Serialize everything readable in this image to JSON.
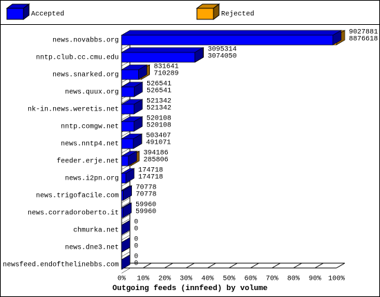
{
  "chart_data": {
    "type": "bar",
    "orientation": "horizontal",
    "layout": "overlaid",
    "title": "Outgoing feeds (innfeed) by volume",
    "categories": [
      "news.novabbs.org",
      "nntp.club.cc.cmu.edu",
      "news.snarked.org",
      "news.quux.org",
      "nk-in.news.weretis.net",
      "nntp.comgw.net",
      "news.nntp4.net",
      "feeder.erje.net",
      "news.i2pn.org",
      "news.trigofacile.com",
      "news.corradoroberto.it",
      "chmurka.net",
      "news.dne3.net",
      "newsfeed.endofthelinebbs.com"
    ],
    "series": [
      {
        "name": "Accepted",
        "color": "#0000ff",
        "values": [
          8876618,
          3074050,
          710289,
          526541,
          521342,
          520108,
          491071,
          285806,
          174718,
          70778,
          59960,
          0,
          0,
          0
        ]
      },
      {
        "name": "Rejected",
        "color": "#ffa500",
        "values": [
          9027881,
          3095314,
          831641,
          526541,
          521342,
          520108,
          503407,
          394186,
          174718,
          70778,
          59960,
          0,
          0,
          0
        ]
      }
    ],
    "xlim": [
      0,
      9027881
    ],
    "xticks": [
      {
        "value": 0,
        "label": "0%"
      },
      {
        "value": 902788.1,
        "label": "10%"
      },
      {
        "value": 1805576.2,
        "label": "20%"
      },
      {
        "value": 2708364.3,
        "label": "30%"
      },
      {
        "value": 3611152.4,
        "label": "40%"
      },
      {
        "value": 4513940.5,
        "label": "50%"
      },
      {
        "value": 5416728.6,
        "label": "60%"
      },
      {
        "value": 6319516.7,
        "label": "70%"
      },
      {
        "value": 7222304.8,
        "label": "80%"
      },
      {
        "value": 8125092.9,
        "label": "90%"
      },
      {
        "value": 9027881,
        "label": "100%"
      }
    ],
    "legend": "top"
  }
}
